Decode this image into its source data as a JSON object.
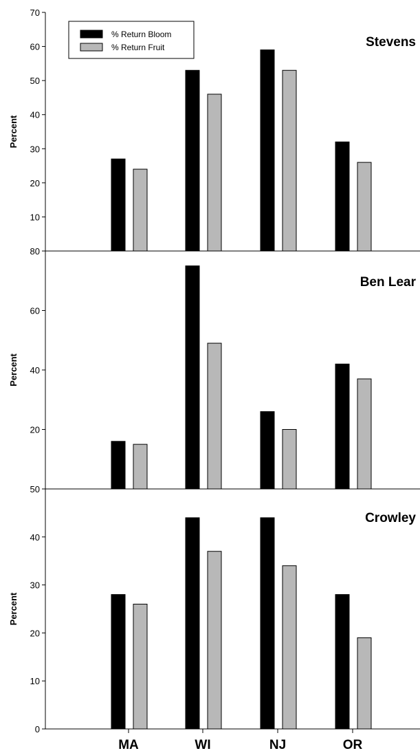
{
  "chart_data": [
    {
      "type": "bar",
      "title": "Stevens",
      "ylabel": "Percent",
      "xlabel": "",
      "categories": [
        "MA",
        "WI",
        "NJ",
        "OR"
      ],
      "ylim": [
        0,
        70
      ],
      "yticks": [
        10,
        20,
        30,
        40,
        50,
        60,
        70
      ],
      "series": [
        {
          "name": "% Return Bloom",
          "color": "#000000",
          "values": [
            27,
            53,
            59,
            32
          ]
        },
        {
          "name": "% Return Fruit",
          "color": "#b8b8b8",
          "values": [
            24,
            46,
            53,
            26
          ]
        }
      ],
      "legend": "top-left"
    },
    {
      "type": "bar",
      "title": "Ben Lear",
      "ylabel": "Percent",
      "xlabel": "",
      "categories": [
        "MA",
        "WI",
        "NJ",
        "OR"
      ],
      "ylim": [
        0,
        80
      ],
      "yticks": [
        20,
        40,
        60,
        80
      ],
      "series": [
        {
          "name": "% Return Bloom",
          "color": "#000000",
          "values": [
            16,
            75,
            26,
            42
          ]
        },
        {
          "name": "% Return Fruit",
          "color": "#b8b8b8",
          "values": [
            15,
            49,
            20,
            37
          ]
        }
      ]
    },
    {
      "type": "bar",
      "title": "Crowley",
      "ylabel": "Percent",
      "xlabel": "",
      "categories": [
        "MA",
        "WI",
        "NJ",
        "OR"
      ],
      "ylim": [
        0,
        50
      ],
      "yticks": [
        0,
        10,
        20,
        30,
        40,
        50
      ],
      "series": [
        {
          "name": "% Return Bloom",
          "color": "#000000",
          "values": [
            28,
            44,
            44,
            28
          ]
        },
        {
          "name": "% Return Fruit",
          "color": "#b8b8b8",
          "values": [
            26,
            37,
            34,
            19
          ]
        }
      ]
    }
  ]
}
